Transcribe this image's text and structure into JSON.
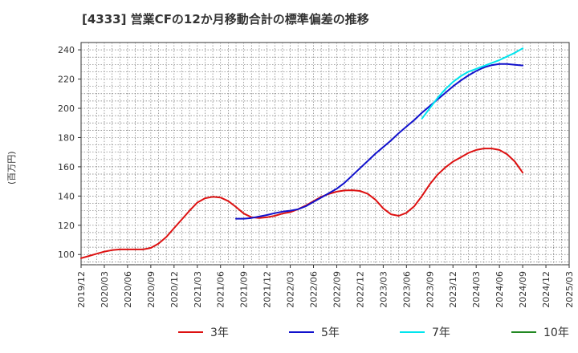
{
  "chart_data": {
    "type": "line",
    "title": "[4333]  営業CFの12か月移動合計の標準偏差の推移",
    "ylabel": "(百万円)",
    "xlabel": "",
    "ylim": [
      93,
      245
    ],
    "yticks": [
      100,
      120,
      140,
      160,
      180,
      200,
      220,
      240
    ],
    "x_start": "2019-12",
    "x_end": "2025-03",
    "xticks": [
      "2019/12",
      "2020/03",
      "2020/06",
      "2020/09",
      "2020/12",
      "2021/03",
      "2021/06",
      "2021/09",
      "2021/12",
      "2022/03",
      "2022/06",
      "2022/09",
      "2022/12",
      "2023/03",
      "2023/06",
      "2023/09",
      "2023/12",
      "2024/03",
      "2024/06",
      "2024/09",
      "2024/12",
      "2025/03"
    ],
    "grid": true,
    "legend_position": "bottom",
    "series": [
      {
        "name": "3年",
        "color": "#dd1111",
        "points": [
          [
            "2019-12",
            97.5
          ],
          [
            "2020-01",
            99
          ],
          [
            "2020-02",
            100.5
          ],
          [
            "2020-03",
            102
          ],
          [
            "2020-04",
            103
          ],
          [
            "2020-05",
            103.5
          ],
          [
            "2020-06",
            103.5
          ],
          [
            "2020-07",
            103.5
          ],
          [
            "2020-08",
            103.5
          ],
          [
            "2020-09",
            104.5
          ],
          [
            "2020-10",
            107.5
          ],
          [
            "2020-11",
            112
          ],
          [
            "2020-12",
            118
          ],
          [
            "2021-01",
            124
          ],
          [
            "2021-02",
            130
          ],
          [
            "2021-03",
            135.5
          ],
          [
            "2021-04",
            138.5
          ],
          [
            "2021-05",
            139.5
          ],
          [
            "2021-06",
            139
          ],
          [
            "2021-07",
            136.5
          ],
          [
            "2021-08",
            132.5
          ],
          [
            "2021-09",
            128
          ],
          [
            "2021-10",
            125.5
          ],
          [
            "2021-11",
            125
          ],
          [
            "2021-12",
            125.5
          ],
          [
            "2022-01",
            126.5
          ],
          [
            "2022-02",
            128
          ],
          [
            "2022-03",
            129
          ],
          [
            "2022-04",
            131
          ],
          [
            "2022-05",
            133.5
          ],
          [
            "2022-06",
            136.5
          ],
          [
            "2022-07",
            139.5
          ],
          [
            "2022-08",
            141.5
          ],
          [
            "2022-09",
            143
          ],
          [
            "2022-10",
            143.8
          ],
          [
            "2022-11",
            144
          ],
          [
            "2022-12",
            143.5
          ],
          [
            "2023-01",
            141.5
          ],
          [
            "2023-02",
            137.5
          ],
          [
            "2023-03",
            131.5
          ],
          [
            "2023-04",
            127.5
          ],
          [
            "2023-05",
            126.5
          ],
          [
            "2023-06",
            128.5
          ],
          [
            "2023-07",
            133
          ],
          [
            "2023-08",
            140
          ],
          [
            "2023-09",
            148
          ],
          [
            "2023-10",
            154.5
          ],
          [
            "2023-11",
            159.5
          ],
          [
            "2023-12",
            163.5
          ],
          [
            "2024-01",
            166.5
          ],
          [
            "2024-02",
            169.5
          ],
          [
            "2024-03",
            171.5
          ],
          [
            "2024-04",
            172.5
          ],
          [
            "2024-05",
            172.5
          ],
          [
            "2024-06",
            171.5
          ],
          [
            "2024-07",
            168.5
          ],
          [
            "2024-08",
            163.5
          ],
          [
            "2024-09",
            156
          ]
        ]
      },
      {
        "name": "5年",
        "color": "#1111cc",
        "points": [
          [
            "2021-08",
            124.5
          ],
          [
            "2021-09",
            124.5
          ],
          [
            "2021-10",
            125
          ],
          [
            "2021-11",
            126
          ],
          [
            "2021-12",
            127
          ],
          [
            "2022-01",
            128.3
          ],
          [
            "2022-02",
            129.3
          ],
          [
            "2022-03",
            130
          ],
          [
            "2022-04",
            131
          ],
          [
            "2022-05",
            133
          ],
          [
            "2022-06",
            136
          ],
          [
            "2022-07",
            139
          ],
          [
            "2022-08",
            142
          ],
          [
            "2022-09",
            145
          ],
          [
            "2022-10",
            149
          ],
          [
            "2022-11",
            154
          ],
          [
            "2022-12",
            159
          ],
          [
            "2023-01",
            164
          ],
          [
            "2023-02",
            169
          ],
          [
            "2023-03",
            173.5
          ],
          [
            "2023-04",
            178
          ],
          [
            "2023-05",
            183
          ],
          [
            "2023-06",
            187.5
          ],
          [
            "2023-07",
            192
          ],
          [
            "2023-08",
            197
          ],
          [
            "2023-09",
            201.5
          ],
          [
            "2023-10",
            206
          ],
          [
            "2023-11",
            210.5
          ],
          [
            "2023-12",
            215
          ],
          [
            "2024-01",
            219
          ],
          [
            "2024-02",
            222.5
          ],
          [
            "2024-03",
            225.5
          ],
          [
            "2024-04",
            228
          ],
          [
            "2024-05",
            229.5
          ],
          [
            "2024-06",
            230.3
          ],
          [
            "2024-07",
            230.3
          ],
          [
            "2024-08",
            229.8
          ],
          [
            "2024-09",
            229.3
          ]
        ]
      },
      {
        "name": "7年",
        "color": "#00e5ee",
        "points": [
          [
            "2023-08",
            193
          ],
          [
            "2023-09",
            200
          ],
          [
            "2023-10",
            207
          ],
          [
            "2023-11",
            213
          ],
          [
            "2023-12",
            218
          ],
          [
            "2024-01",
            222
          ],
          [
            "2024-02",
            225
          ],
          [
            "2024-03",
            227
          ],
          [
            "2024-04",
            229
          ],
          [
            "2024-05",
            231
          ],
          [
            "2024-06",
            233
          ],
          [
            "2024-07",
            235.5
          ],
          [
            "2024-08",
            238
          ],
          [
            "2024-09",
            241
          ]
        ]
      },
      {
        "name": "10年",
        "color": "#228822",
        "points": []
      }
    ]
  }
}
